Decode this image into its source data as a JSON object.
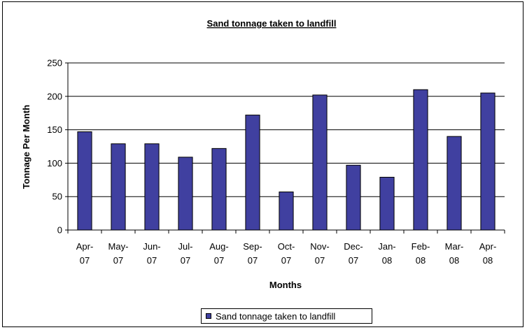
{
  "chart_data": {
    "type": "bar",
    "title": "Sand tonnage taken to landfill",
    "xlabel": "Months",
    "ylabel": "Tonnage Per Month",
    "categories": [
      [
        "Apr-",
        "07"
      ],
      [
        "May-",
        "07"
      ],
      [
        "Jun-",
        "07"
      ],
      [
        "Jul-",
        "07"
      ],
      [
        "Aug-",
        "07"
      ],
      [
        "Sep-",
        "07"
      ],
      [
        "Oct-",
        "07"
      ],
      [
        "Nov-",
        "07"
      ],
      [
        "Dec-",
        "07"
      ],
      [
        "Jan-",
        "08"
      ],
      [
        "Feb-",
        "08"
      ],
      [
        "Mar-",
        "08"
      ],
      [
        "Apr-",
        "08"
      ]
    ],
    "series": [
      {
        "name": "Sand tonnage taken to landfill",
        "values": [
          147,
          129,
          129,
          109,
          122,
          172,
          57,
          202,
          97,
          79,
          210,
          140,
          205
        ]
      }
    ],
    "ylim": [
      0,
      250
    ],
    "yticks": [
      0,
      50,
      100,
      150,
      200,
      250
    ],
    "grid": true,
    "legend_position": "bottom",
    "colors": {
      "bar": "#4040a0",
      "bar_stroke": "#000000",
      "grid": "#000000"
    }
  }
}
